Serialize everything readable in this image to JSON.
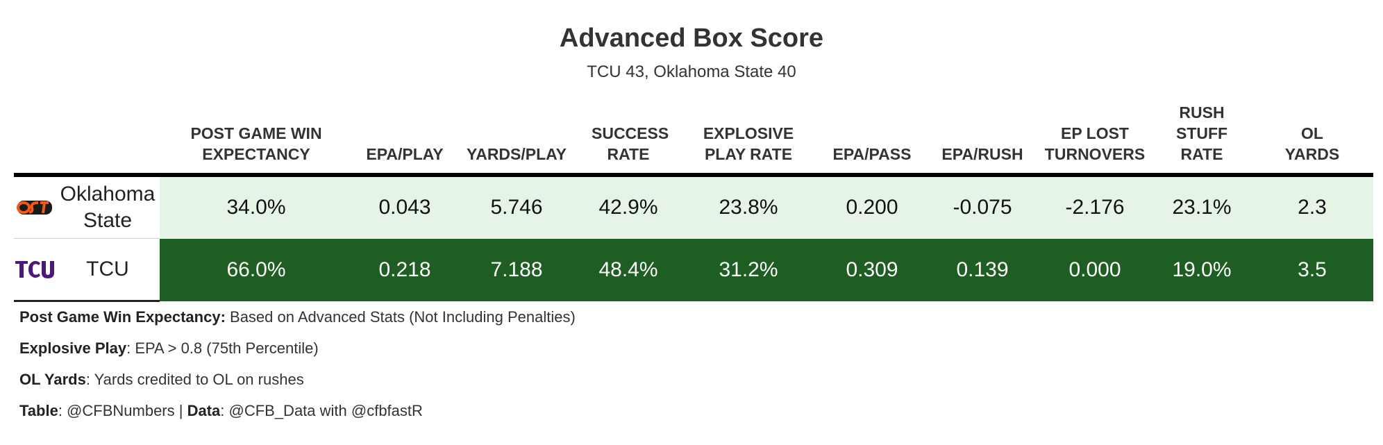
{
  "title": "Advanced Box Score",
  "subtitle": "TCU 43, Oklahoma State 40",
  "colors": {
    "light_cell": "#e6f4e6",
    "dark_cell": "#1e5e22",
    "osu_orange": "#f05a14",
    "tcu_purple": "#4d1979"
  },
  "chart_data": {
    "type": "table",
    "columns": [
      "POST GAME WIN EXPECTANCY",
      "EPA/PLAY",
      "YARDS/PLAY",
      "SUCCESS RATE",
      "EXPLOSIVE PLAY RATE",
      "EPA/PASS",
      "EPA/RUSH",
      "EP LOST TURNOVERS",
      "RUSH STUFF RATE",
      "OL YARDS"
    ],
    "rows": [
      {
        "logo": "osu-logo-icon",
        "team": "Oklahoma State",
        "values": [
          "34.0%",
          "0.043",
          "5.746",
          "42.9%",
          "23.8%",
          "0.200",
          "-0.075",
          "-2.176",
          "23.1%",
          "2.3"
        ]
      },
      {
        "logo": "tcu-logo-icon",
        "team": "TCU",
        "values": [
          "66.0%",
          "0.218",
          "7.188",
          "48.4%",
          "31.2%",
          "0.309",
          "0.139",
          "0.000",
          "19.0%",
          "3.5"
        ]
      }
    ]
  },
  "footnotes": {
    "win_exp_label": "Post Game Win Expectancy:",
    "win_exp_text": " Based on Advanced Stats (Not Including Penalties)",
    "explosive_label": "Explosive Play",
    "explosive_text": ": EPA > 0.8 (75th Percentile)",
    "ol_label": "OL Yards",
    "ol_text": ": Yards credited to OL on rushes",
    "table_label": "Table",
    "table_text": ": @CFBNumbers | ",
    "data_label": "Data",
    "data_text": ": @CFB_Data with @cfbfastR"
  }
}
